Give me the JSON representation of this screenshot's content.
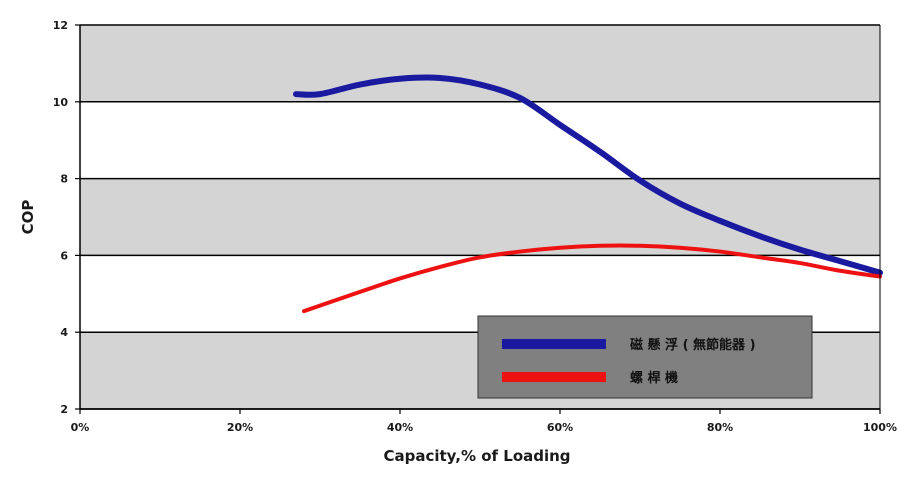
{
  "chart_data": {
    "type": "line",
    "title": "",
    "xlabel": "Capacity,% of Loading",
    "ylabel": "COP",
    "xlim": [
      0,
      100
    ],
    "ylim": [
      2,
      12
    ],
    "x_ticks": [
      0,
      20,
      40,
      60,
      80,
      100
    ],
    "x_tick_labels": [
      "0%",
      "20%",
      "40%",
      "60%",
      "80%",
      "100%"
    ],
    "y_ticks": [
      2,
      4,
      6,
      8,
      10,
      12
    ],
    "y_tick_labels": [
      "2",
      "4",
      "6",
      "8",
      "10",
      "12"
    ],
    "grid": "horizontal",
    "legend_position": "bottom-right",
    "colors": {
      "band_shaded": "#d4d4d4",
      "band_plain": "#ffffff",
      "gridline": "#000000",
      "legend_bg": "#808080"
    },
    "series": [
      {
        "name": "磁 懸 浮 ( 無節能器 )",
        "color": "#1a1aa0",
        "x": [
          27,
          30,
          35,
          40,
          45,
          50,
          55,
          60,
          65,
          70,
          75,
          80,
          85,
          90,
          95,
          100
        ],
        "y": [
          10.2,
          10.2,
          10.45,
          10.6,
          10.62,
          10.45,
          10.1,
          9.4,
          8.7,
          7.95,
          7.35,
          6.9,
          6.5,
          6.15,
          5.85,
          5.55
        ]
      },
      {
        "name": "螺 桿 機",
        "color": "#ee1111",
        "x": [
          28,
          35,
          40,
          45,
          50,
          55,
          60,
          65,
          70,
          75,
          80,
          85,
          90,
          95,
          100
        ],
        "y": [
          4.55,
          5.05,
          5.4,
          5.7,
          5.95,
          6.1,
          6.2,
          6.25,
          6.25,
          6.2,
          6.1,
          5.95,
          5.8,
          5.6,
          5.45
        ]
      }
    ]
  }
}
